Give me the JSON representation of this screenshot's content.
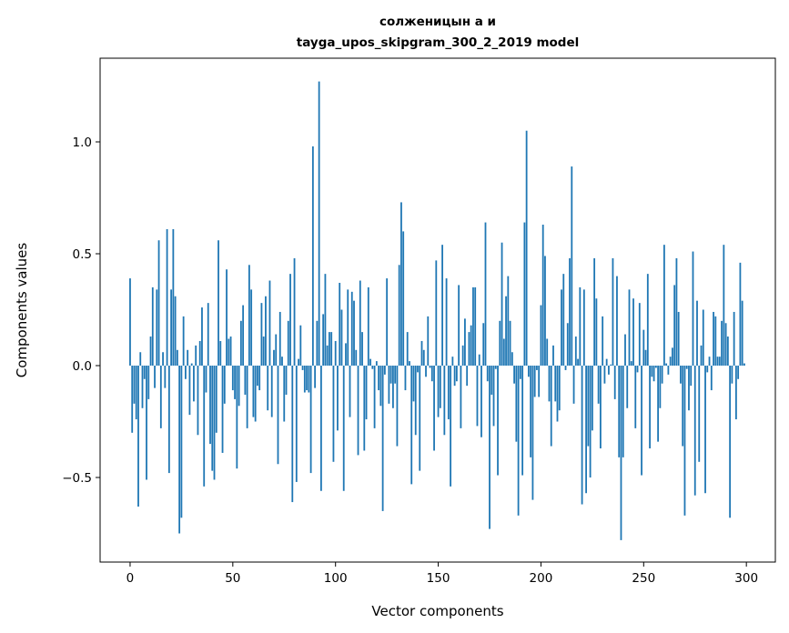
{
  "chart_data": {
    "type": "bar",
    "title": [
      "солженицын а и",
      "tayga_upos_skipgram_300_2_2019 model"
    ],
    "xlabel": "Vector components",
    "ylabel": "Components values",
    "xlim": [
      -14.6,
      314.1
    ],
    "ylim": [
      -0.878,
      1.374
    ],
    "xticks": [
      0,
      50,
      100,
      150,
      200,
      250,
      300
    ],
    "xtick_labels": [
      "0",
      "50",
      "100",
      "150",
      "200",
      "250",
      "300"
    ],
    "yticks": [
      -0.5,
      0.0,
      0.5,
      1.0
    ],
    "ytick_labels": [
      "−0.5",
      "0.0",
      "0.5",
      "1.0"
    ],
    "grid": false,
    "bar_color": "#1f77b4",
    "bar_width": 0.8,
    "values": [
      0.39,
      -0.3,
      -0.17,
      -0.24,
      -0.63,
      0.06,
      -0.19,
      -0.06,
      -0.51,
      -0.15,
      0.13,
      0.35,
      -0.1,
      0.34,
      0.56,
      -0.28,
      0.06,
      -0.1,
      0.61,
      -0.48,
      0.34,
      0.61,
      0.31,
      0.07,
      -0.75,
      -0.68,
      0.22,
      -0.06,
      0.07,
      -0.22,
      0.01,
      -0.16,
      0.09,
      -0.31,
      0.11,
      0.26,
      -0.54,
      -0.12,
      0.28,
      -0.35,
      -0.47,
      -0.51,
      -0.3,
      0.56,
      0.11,
      -0.39,
      -0.17,
      0.43,
      0.12,
      0.13,
      -0.11,
      -0.15,
      -0.46,
      -0.18,
      0.2,
      0.27,
      -0.13,
      -0.28,
      0.45,
      0.34,
      -0.23,
      -0.25,
      -0.09,
      -0.11,
      0.28,
      0.13,
      0.31,
      -0.2,
      0.38,
      -0.23,
      0.07,
      0.14,
      -0.44,
      0.24,
      0.04,
      -0.25,
      -0.13,
      0.2,
      0.41,
      -0.61,
      0.48,
      -0.52,
      0.03,
      0.18,
      -0.02,
      -0.12,
      -0.11,
      -0.12,
      -0.48,
      0.98,
      -0.1,
      0.2,
      1.27,
      -0.56,
      0.23,
      0.41,
      0.09,
      0.15,
      0.15,
      -0.43,
      0.11,
      -0.29,
      0.37,
      0.25,
      -0.56,
      0.1,
      0.34,
      -0.23,
      0.33,
      0.29,
      0.07,
      -0.4,
      0.38,
      0.15,
      -0.38,
      -0.24,
      0.35,
      0.03,
      -0.015,
      -0.28,
      0.02,
      -0.11,
      -0.18,
      -0.65,
      -0.04,
      0.39,
      -0.17,
      -0.08,
      -0.19,
      -0.08,
      -0.36,
      0.45,
      0.73,
      0.6,
      -0.11,
      0.15,
      0.02,
      -0.53,
      -0.16,
      -0.31,
      -0.03,
      -0.47,
      0.11,
      0.07,
      -0.05,
      0.22,
      -0.01,
      -0.07,
      -0.38,
      0.47,
      -0.23,
      -0.19,
      0.54,
      -0.31,
      0.39,
      -0.24,
      -0.54,
      0.04,
      -0.09,
      -0.07,
      0.36,
      -0.28,
      0.09,
      0.21,
      -0.09,
      0.15,
      0.18,
      0.35,
      0.35,
      -0.27,
      0.05,
      -0.32,
      0.19,
      0.64,
      -0.07,
      -0.73,
      -0.13,
      -0.27,
      -0.015,
      -0.49,
      0.2,
      0.55,
      0.12,
      0.31,
      0.4,
      0.2,
      0.06,
      -0.08,
      -0.34,
      -0.67,
      -0.06,
      -0.49,
      0.64,
      1.05,
      -0.05,
      -0.41,
      -0.6,
      -0.14,
      -0.02,
      -0.14,
      0.27,
      0.63,
      0.49,
      0.12,
      -0.16,
      -0.36,
      0.09,
      -0.16,
      -0.25,
      -0.2,
      0.34,
      0.41,
      -0.02,
      0.19,
      0.48,
      0.89,
      -0.17,
      0.13,
      0.03,
      0.35,
      -0.62,
      0.34,
      -0.57,
      -0.36,
      -0.5,
      -0.29,
      0.48,
      0.3,
      -0.17,
      -0.37,
      0.22,
      -0.08,
      0.03,
      -0.04,
      0.005,
      0.48,
      -0.15,
      0.4,
      -0.41,
      -0.78,
      -0.41,
      0.14,
      -0.19,
      0.34,
      0.02,
      0.3,
      -0.28,
      -0.03,
      0.28,
      -0.49,
      0.16,
      0.07,
      0.41,
      -0.37,
      -0.05,
      -0.07,
      -0.01,
      -0.34,
      -0.19,
      -0.08,
      0.54,
      0.01,
      -0.04,
      0.04,
      0.08,
      0.36,
      0.48,
      0.24,
      -0.08,
      -0.36,
      -0.67,
      -0.015,
      -0.2,
      -0.09,
      0.51,
      -0.58,
      0.29,
      -0.43,
      0.09,
      0.25,
      -0.57,
      -0.03,
      0.04,
      -0.11,
      0.24,
      0.22,
      0.04,
      0.04,
      0.2,
      0.54,
      0.19,
      0.13,
      -0.68,
      -0.08,
      0.24,
      -0.24,
      -0.06,
      0.46,
      0.29,
      0.01
    ]
  }
}
